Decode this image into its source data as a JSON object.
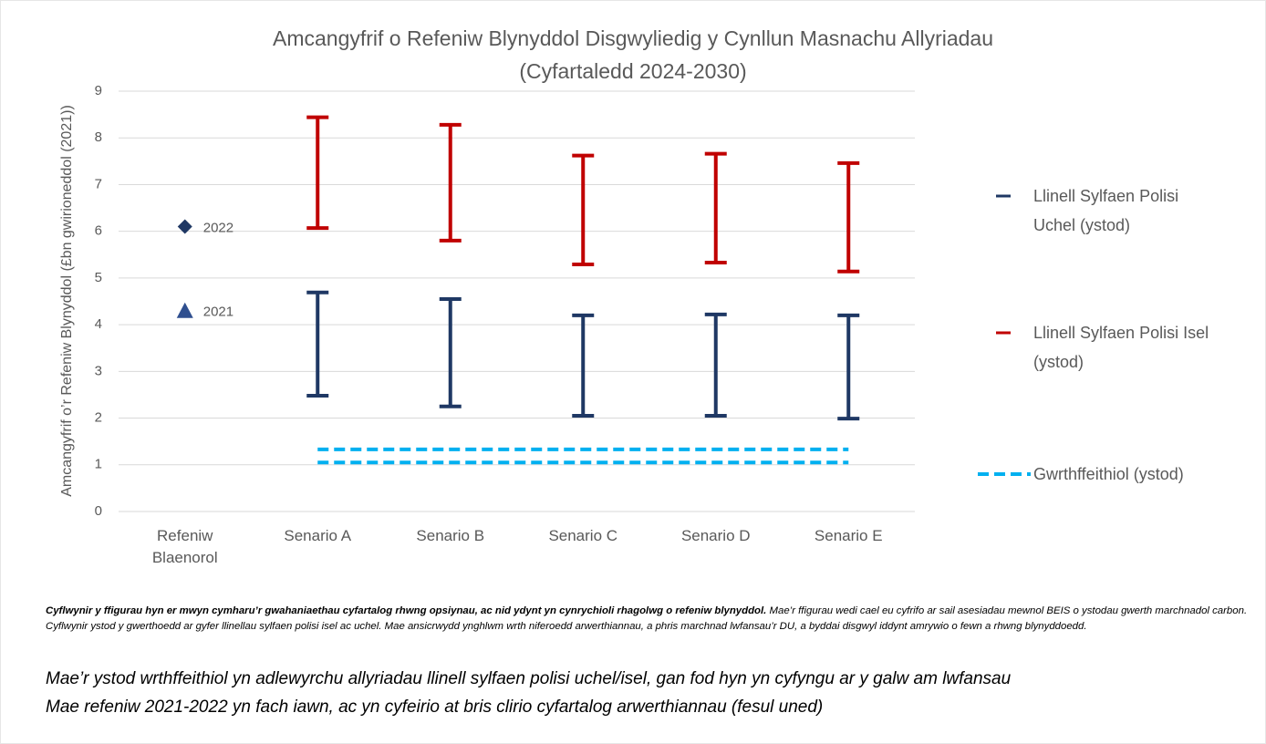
{
  "chart_data": {
    "type": "range",
    "title": "Amcangyfrif o Refeniw Blynyddol Disgwyliedig y Cynllun Masnachu Allyriadau",
    "subtitle": "(Cyfartaledd 2024-2030)",
    "y_label": "Amcangyfrif o’r Refeniw Blynyddol (£bn gwirioneddol (2021))",
    "categories": [
      "Refeniw Blaenorol",
      "Senario A",
      "Senario B",
      "Senario C",
      "Senario D",
      "Senario E"
    ],
    "series": [
      {
        "name": "Llinell Sylfaen Polisi Uchel (ystod)",
        "color": "#1f3864",
        "style": "errorbar",
        "low": [
          null,
          2.48,
          2.25,
          2.05,
          2.05,
          1.99
        ],
        "high": [
          null,
          4.69,
          4.55,
          4.2,
          4.22,
          4.2
        ]
      },
      {
        "name": "Llinell Sylfaen Polisi Isel (ystod)",
        "color": "#c00000",
        "style": "errorbar",
        "low": [
          null,
          6.07,
          5.8,
          5.29,
          5.33,
          5.14
        ],
        "high": [
          null,
          8.44,
          8.28,
          7.62,
          7.66,
          7.46
        ]
      },
      {
        "name": "Gwrthffeithiol (ystod)",
        "color": "#00b0f0",
        "style": "dashed",
        "low": [
          null,
          1.05,
          1.05,
          1.05,
          1.05,
          1.05
        ],
        "high": [
          null,
          1.33,
          1.33,
          1.33,
          1.33,
          1.33
        ]
      }
    ],
    "points": [
      {
        "label": "2022",
        "value": 6.1,
        "marker": "diamond",
        "color": "#1f3864"
      },
      {
        "label": "2021",
        "value": 4.3,
        "marker": "triangle",
        "color": "#2f4f8f"
      }
    ],
    "ylim": [
      0,
      9
    ],
    "yticks": [
      0,
      1,
      2,
      3,
      4,
      5,
      6,
      7,
      8,
      9
    ],
    "grid": true,
    "legend": "right"
  },
  "notes": {
    "bold": "Cyflwynir y ffigurau hyn er mwyn cymharu’r gwahaniaethau cyfartalog rhwng opsiynau, ac nid ydynt yn cynrychioli rhagolwg o refeniw blynyddol.",
    "text": "Mae’r ffigurau wedi cael eu cyfrifo ar sail asesiadau mewnol BEIS o ystodau gwerth marchnadol carbon. Cyflwynir ystod y gwerthoedd ar gyfer llinellau sylfaen polisi isel ac uchel. Mae ansicrwydd ynghlwm wrth niferoedd arwerthiannau, a phris marchnad lwfansau’r DU, a byddai disgwyl iddynt amrywio o fewn a rhwng blynyddoedd.",
    "lines": [
      "Mae’r ystod wrthffeithiol yn adlewyrchu allyriadau llinell sylfaen polisi uchel/isel, gan fod hyn yn cyfyngu ar y galw am lwfansau",
      "Mae refeniw 2021-2022 yn fach iawn, ac yn cyfeirio at bris clirio cyfartalog arwerthiannau (fesul uned)"
    ]
  }
}
